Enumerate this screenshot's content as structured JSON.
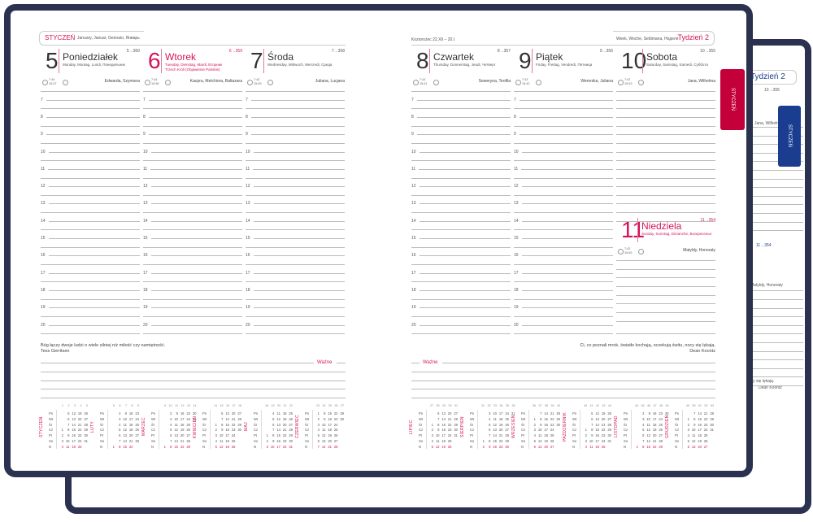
{
  "colors": {
    "accent": "#d4145a",
    "cover": "#2b3250",
    "tab_red": "#c4003a",
    "tab_blue": "#1a3d8f"
  },
  "left_page": {
    "month": "STYCZEŃ",
    "month_langs": "January, Januar, Gennaio, Январь",
    "quote": "Bóg łączy dwoje ludzi o wiele silniej niż miłość czy namiętność.",
    "quote_author": "Tess Gerritsen",
    "important_label": "Ważne"
  },
  "right_page": {
    "zodiac": "Koziorożec 22.XII – 20.I",
    "week_langs": "Week, Woche, Settimana, Неделя",
    "week": "Tydzień 2",
    "quote": "Ci, co poznali mrok, światło kochają, oczekują świtu, nocy się lękają.",
    "quote_author": "Dean Koontz",
    "important_label": "Ważne"
  },
  "tabs": {
    "front": "STYCZEŃ",
    "back": "STYCZEŃ"
  },
  "back_book": {
    "week": "Tydzień 2",
    "count": "10→355",
    "count2": "11→354",
    "names": "Jana, Wilhelma",
    "names2": "Matyldy, Honoraty",
    "quote_end": "nocy się lękają.",
    "author": "Dean Koontz"
  },
  "hours": [
    "7",
    "8",
    "9",
    "10",
    "11",
    "12",
    "13",
    "14",
    "15",
    "16",
    "17",
    "18",
    "19",
    "20"
  ],
  "days": [
    {
      "num": "5",
      "name": "Poniedziałek",
      "langs": "Monday, Montag, Lundi, Понедельник",
      "extra": "",
      "count": "5→360",
      "sunrise": "7:44",
      "sunset": "15:37",
      "names": "Edwarda, Szymona",
      "holiday": false
    },
    {
      "num": "6",
      "name": "Wtorek",
      "langs": "Tuesday, Dienstag, Mardi, Вторник",
      "extra": "Trzech Króli (Objawienie Pańskie)",
      "count": "6→359",
      "sunrise": "7:44",
      "sunset": "15:38",
      "names": "Kacpra, Melchiora, Baltazara",
      "holiday": true
    },
    {
      "num": "7",
      "name": "Środa",
      "langs": "Wednesday, Mittwoch, Mercredi, Среда",
      "extra": "",
      "count": "7→358",
      "sunrise": "7:43",
      "sunset": "15:39",
      "names": "Juliana, Lucjana",
      "holiday": false
    },
    {
      "num": "8",
      "name": "Czwartek",
      "langs": "Thursday, Donnerstag, Jeudi, Четверг",
      "extra": "",
      "count": "8→357",
      "sunrise": "7:43",
      "sunset": "15:41",
      "names": "Seweryna, Teofila",
      "holiday": false
    },
    {
      "num": "9",
      "name": "Piątek",
      "langs": "Friday, Freitag, Vendredi, Пятница",
      "extra": "",
      "count": "9→356",
      "sunrise": "7:43",
      "sunset": "15:42",
      "names": "Weronika, Juliana",
      "holiday": false
    },
    {
      "num": "10",
      "name": "Sobota",
      "langs": "Saturday, Samstag, Samedi, Суббота",
      "extra": "",
      "count": "10→355",
      "sunrise": "7:42",
      "sunset": "15:43",
      "names": "Jana, Wilhelma",
      "holiday": false
    },
    {
      "num": "11",
      "name": "Niedziela",
      "langs": "Sunday, Sonntag, Dimanche, Воскресенье",
      "extra": "",
      "count": "11→354",
      "sunrise": "7:42",
      "sunset": "15:45",
      "names": "Matyldy, Honoraty",
      "holiday": true
    }
  ],
  "weekday_abbr": [
    "Pn",
    "Wt",
    "Śr",
    "Cz",
    "Pt",
    "So",
    "N"
  ],
  "mini_calendars": [
    {
      "month": "STYCZEŃ",
      "weeks": [
        "1",
        "2",
        "3",
        "4",
        "5"
      ],
      "rows": [
        [
          "",
          "5",
          "12",
          "19",
          "26"
        ],
        [
          "",
          "6",
          "13",
          "20",
          "27"
        ],
        [
          "",
          "7",
          "14",
          "21",
          "28"
        ],
        [
          "1",
          "8",
          "15",
          "22",
          "29"
        ],
        [
          "2",
          "9",
          "16",
          "23",
          "30"
        ],
        [
          "3",
          "10",
          "17",
          "24",
          "31"
        ],
        [
          "4",
          "11",
          "18",
          "25",
          ""
        ]
      ]
    },
    {
      "month": "LUTY",
      "weeks": [
        "5",
        "6",
        "7",
        "8",
        "9"
      ],
      "rows": [
        [
          "",
          "2",
          "9",
          "16",
          "23"
        ],
        [
          "",
          "3",
          "10",
          "17",
          "24"
        ],
        [
          "",
          "4",
          "11",
          "18",
          "25"
        ],
        [
          "",
          "5",
          "12",
          "19",
          "26"
        ],
        [
          "",
          "6",
          "13",
          "20",
          "27"
        ],
        [
          "",
          "7",
          "14",
          "21",
          "28"
        ],
        [
          "1",
          "8",
          "15",
          "22",
          ""
        ]
      ]
    },
    {
      "month": "MARZEC",
      "weeks": [
        "9",
        "10",
        "11",
        "12",
        "13",
        "14"
      ],
      "rows": [
        [
          "",
          "2",
          "9",
          "16",
          "23",
          "30"
        ],
        [
          "",
          "3",
          "10",
          "17",
          "24",
          "31"
        ],
        [
          "",
          "4",
          "11",
          "18",
          "25",
          ""
        ],
        [
          "",
          "5",
          "12",
          "19",
          "26",
          ""
        ],
        [
          "",
          "6",
          "13",
          "20",
          "27",
          ""
        ],
        [
          "",
          "7",
          "14",
          "21",
          "28",
          ""
        ],
        [
          "1",
          "8",
          "15",
          "22",
          "29",
          ""
        ]
      ]
    },
    {
      "month": "KWIECIEŃ",
      "weeks": [
        "14",
        "15",
        "16",
        "17",
        "18"
      ],
      "rows": [
        [
          "",
          "6",
          "13",
          "20",
          "27"
        ],
        [
          "",
          "7",
          "14",
          "21",
          "28"
        ],
        [
          "1",
          "8",
          "15",
          "22",
          "29"
        ],
        [
          "2",
          "9",
          "16",
          "23",
          "30"
        ],
        [
          "3",
          "10",
          "17",
          "24",
          ""
        ],
        [
          "4",
          "11",
          "18",
          "25",
          ""
        ],
        [
          "5",
          "12",
          "19",
          "26",
          ""
        ]
      ]
    },
    {
      "month": "MAJ",
      "weeks": [
        "18",
        "19",
        "20",
        "21",
        "22"
      ],
      "rows": [
        [
          "",
          "4",
          "11",
          "18",
          "25"
        ],
        [
          "",
          "5",
          "12",
          "19",
          "26"
        ],
        [
          "",
          "6",
          "13",
          "20",
          "27"
        ],
        [
          "",
          "7",
          "14",
          "21",
          "28"
        ],
        [
          "1",
          "8",
          "15",
          "22",
          "29"
        ],
        [
          "2",
          "9",
          "16",
          "23",
          "30"
        ],
        [
          "3",
          "10",
          "17",
          "24",
          "31"
        ]
      ]
    },
    {
      "month": "CZERWIEC",
      "weeks": [
        "23",
        "24",
        "25",
        "26",
        "27"
      ],
      "rows": [
        [
          "1",
          "8",
          "15",
          "22",
          "29"
        ],
        [
          "2",
          "9",
          "16",
          "23",
          "30"
        ],
        [
          "3",
          "10",
          "17",
          "24",
          ""
        ],
        [
          "4",
          "11",
          "18",
          "25",
          ""
        ],
        [
          "5",
          "12",
          "19",
          "26",
          ""
        ],
        [
          "6",
          "13",
          "20",
          "27",
          ""
        ],
        [
          "7",
          "14",
          "21",
          "28",
          ""
        ]
      ]
    },
    {
      "month": "LIPIEC",
      "weeks": [
        "27",
        "28",
        "29",
        "30",
        "31"
      ],
      "rows": [
        [
          "",
          "6",
          "13",
          "20",
          "27"
        ],
        [
          "",
          "7",
          "14",
          "21",
          "28"
        ],
        [
          "1",
          "8",
          "15",
          "22",
          "29"
        ],
        [
          "2",
          "9",
          "16",
          "23",
          "30"
        ],
        [
          "3",
          "10",
          "17",
          "24",
          "31"
        ],
        [
          "4",
          "11",
          "18",
          "25",
          ""
        ],
        [
          "5",
          "12",
          "19",
          "26",
          ""
        ]
      ]
    },
    {
      "month": "SIERPIEŃ",
      "weeks": [
        "31",
        "32",
        "33",
        "34",
        "35",
        "36"
      ],
      "rows": [
        [
          "",
          "3",
          "10",
          "17",
          "24",
          "31"
        ],
        [
          "",
          "4",
          "11",
          "18",
          "25",
          ""
        ],
        [
          "",
          "5",
          "12",
          "19",
          "26",
          ""
        ],
        [
          "",
          "6",
          "13",
          "20",
          "27",
          ""
        ],
        [
          "",
          "7",
          "14",
          "21",
          "28",
          ""
        ],
        [
          "1",
          "8",
          "15",
          "22",
          "29",
          ""
        ],
        [
          "2",
          "9",
          "16",
          "23",
          "30",
          ""
        ]
      ]
    },
    {
      "month": "WRZESIEŃ",
      "weeks": [
        "36",
        "37",
        "38",
        "39",
        "40"
      ],
      "rows": [
        [
          "",
          "7",
          "14",
          "21",
          "28"
        ],
        [
          "1",
          "8",
          "15",
          "22",
          "29"
        ],
        [
          "2",
          "9",
          "16",
          "23",
          "30"
        ],
        [
          "3",
          "10",
          "17",
          "24",
          ""
        ],
        [
          "4",
          "11",
          "18",
          "25",
          ""
        ],
        [
          "5",
          "12",
          "19",
          "26",
          ""
        ],
        [
          "6",
          "13",
          "20",
          "27",
          ""
        ]
      ]
    },
    {
      "month": "PAŹDZIERNIK",
      "weeks": [
        "40",
        "41",
        "42",
        "43",
        "44"
      ],
      "rows": [
        [
          "",
          "5",
          "12",
          "19",
          "26"
        ],
        [
          "",
          "6",
          "13",
          "20",
          "27"
        ],
        [
          "",
          "7",
          "14",
          "21",
          "28"
        ],
        [
          "1",
          "8",
          "15",
          "22",
          "29"
        ],
        [
          "2",
          "9",
          "16",
          "23",
          "30"
        ],
        [
          "3",
          "10",
          "17",
          "24",
          "31"
        ],
        [
          "4",
          "11",
          "18",
          "25",
          ""
        ]
      ]
    },
    {
      "month": "LISTOPAD",
      "weeks": [
        "44",
        "45",
        "46",
        "47",
        "48",
        "49"
      ],
      "rows": [
        [
          "",
          "2",
          "9",
          "16",
          "23",
          "30"
        ],
        [
          "",
          "3",
          "10",
          "17",
          "24",
          ""
        ],
        [
          "",
          "4",
          "11",
          "18",
          "25",
          ""
        ],
        [
          "",
          "5",
          "12",
          "19",
          "26",
          ""
        ],
        [
          "",
          "6",
          "13",
          "20",
          "27",
          ""
        ],
        [
          "",
          "7",
          "14",
          "21",
          "28",
          ""
        ],
        [
          "1",
          "8",
          "15",
          "22",
          "29",
          ""
        ]
      ]
    },
    {
      "month": "GRUDZIEŃ",
      "weeks": [
        "49",
        "50",
        "51",
        "52",
        "53"
      ],
      "rows": [
        [
          "",
          "7",
          "14",
          "21",
          "28"
        ],
        [
          "1",
          "8",
          "15",
          "22",
          "29"
        ],
        [
          "2",
          "9",
          "16",
          "23",
          "30"
        ],
        [
          "3",
          "10",
          "17",
          "24",
          "31"
        ],
        [
          "4",
          "11",
          "18",
          "25",
          ""
        ],
        [
          "5",
          "12",
          "19",
          "26",
          ""
        ],
        [
          "6",
          "13",
          "20",
          "27",
          ""
        ]
      ]
    }
  ]
}
